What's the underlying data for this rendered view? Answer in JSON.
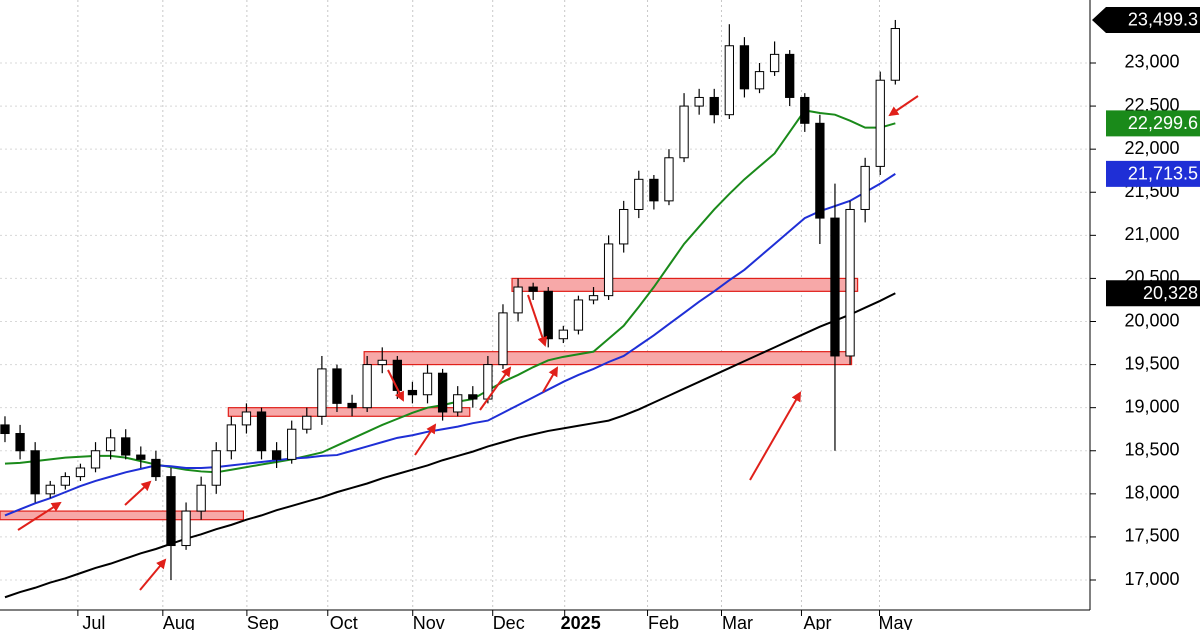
{
  "chart_data": {
    "type": "candlestick",
    "xlim": [
      -0.33,
      71.9
    ],
    "ylim": [
      16652,
      23731
    ],
    "grid": true,
    "xticks": [
      {
        "value": 4.83,
        "label": "Jul"
      },
      {
        "value": 10.46,
        "label": "Aug"
      },
      {
        "value": 16.03,
        "label": "Sep"
      },
      {
        "value": 21.39,
        "label": "Oct"
      },
      {
        "value": 27.02,
        "label": "Nov"
      },
      {
        "value": 32.32,
        "label": "Dec"
      },
      {
        "value": 37.09,
        "label": "2025"
      },
      {
        "value": 42.58,
        "label": "Feb"
      },
      {
        "value": 47.48,
        "label": "Mar"
      },
      {
        "value": 52.78,
        "label": "Apr"
      },
      {
        "value": 57.95,
        "label": "May"
      }
    ],
    "yticks": [
      {
        "value": 17000,
        "label": "17,000"
      },
      {
        "value": 17500,
        "label": "17,500"
      },
      {
        "value": 18000,
        "label": "18,000"
      },
      {
        "value": 18500,
        "label": "18,500"
      },
      {
        "value": 19000,
        "label": "19,000"
      },
      {
        "value": 19500,
        "label": "19,500"
      },
      {
        "value": 20000,
        "label": "20,000"
      },
      {
        "value": 20500,
        "label": "20,500"
      },
      {
        "value": 21000,
        "label": "21,000"
      },
      {
        "value": 21500,
        "label": "21,500"
      },
      {
        "value": 22000,
        "label": "22,000"
      },
      {
        "value": 22500,
        "label": "22,500"
      },
      {
        "value": 23000,
        "label": "23,000"
      }
    ],
    "candles": {
      "color": "#000000",
      "open": [
        18800,
        18700,
        18500,
        18000,
        18100,
        18200,
        18300,
        18500,
        18650,
        18450,
        18400,
        18200,
        17400,
        17800,
        18100,
        18500,
        18800,
        18950,
        18500,
        18400,
        18750,
        18900,
        19450,
        19050,
        19000,
        19500,
        19550,
        19200,
        19150,
        19400,
        18950,
        19150,
        19100,
        19500,
        20100,
        20400,
        20350,
        19800,
        19900,
        20250,
        20300,
        20900,
        21300,
        21650,
        21400,
        21900,
        22500,
        22600,
        22400,
        23200,
        22700,
        22900,
        23100,
        22600,
        22300,
        21200,
        19600,
        21300,
        21800,
        22800
      ],
      "high": [
        18900,
        18800,
        18600,
        18150,
        18250,
        18350,
        18600,
        18750,
        18750,
        18550,
        18500,
        18300,
        17900,
        18200,
        18600,
        18900,
        19050,
        19000,
        18600,
        18850,
        19000,
        19600,
        19500,
        19150,
        19600,
        19700,
        19600,
        19300,
        19500,
        19450,
        19250,
        19250,
        19600,
        20200,
        20500,
        20450,
        20400,
        19950,
        20300,
        20400,
        21000,
        21400,
        21750,
        21700,
        22000,
        22650,
        22700,
        22700,
        23450,
        23300,
        23000,
        23250,
        23150,
        22650,
        22400,
        21600,
        21400,
        21900,
        22900,
        23499.3
      ],
      "low": [
        18600,
        18400,
        17900,
        17950,
        18050,
        18150,
        18250,
        18400,
        18400,
        18300,
        18150,
        17000,
        17350,
        17700,
        18000,
        18400,
        18700,
        18400,
        18300,
        18350,
        18700,
        18800,
        18950,
        18900,
        18950,
        19400,
        19100,
        19050,
        19050,
        18850,
        18900,
        19000,
        19050,
        19450,
        20000,
        20250,
        19700,
        19750,
        19850,
        20200,
        20250,
        20800,
        21200,
        21300,
        21350,
        21850,
        22400,
        22300,
        22350,
        22600,
        22650,
        22850,
        22500,
        22200,
        20900,
        18500,
        19500,
        21150,
        21700,
        22750
      ],
      "close": [
        18700,
        18500,
        18000,
        18100,
        18200,
        18300,
        18500,
        18650,
        18450,
        18400,
        18200,
        17400,
        17800,
        18100,
        18500,
        18800,
        18950,
        18500,
        18400,
        18750,
        18900,
        19450,
        19050,
        19000,
        19500,
        19550,
        19200,
        19150,
        19400,
        18950,
        19150,
        19100,
        19500,
        20100,
        20400,
        20350,
        19800,
        19900,
        20250,
        20300,
        20900,
        21300,
        21650,
        21400,
        21900,
        22500,
        22600,
        22400,
        23200,
        22700,
        22900,
        23100,
        22600,
        22300,
        21200,
        19600,
        21300,
        21800,
        22800,
        23400
      ]
    },
    "series": [
      {
        "color": "#1a8a1a",
        "values": [
          18350,
          18360,
          18380,
          18400,
          18420,
          18430,
          18440,
          18440,
          18420,
          18380,
          18340,
          18310,
          18280,
          18260,
          18250,
          18280,
          18310,
          18340,
          18370,
          18400,
          18440,
          18480,
          18560,
          18640,
          18720,
          18800,
          18870,
          18940,
          19000,
          19030,
          19070,
          19100,
          19200,
          19300,
          19380,
          19470,
          19550,
          19590,
          19620,
          19650,
          19800,
          19950,
          20170,
          20400,
          20650,
          20900,
          21100,
          21300,
          21480,
          21650,
          21800,
          21950,
          22200,
          22450,
          22420,
          22400,
          22330,
          22250,
          22250,
          22299.6
        ]
      },
      {
        "color": "#1f2fd6",
        "values": [
          17750,
          17820,
          17890,
          17950,
          18020,
          18090,
          18150,
          18200,
          18250,
          18290,
          18330,
          18320,
          18300,
          18300,
          18310,
          18330,
          18350,
          18370,
          18390,
          18410,
          18420,
          18440,
          18450,
          18500,
          18550,
          18600,
          18650,
          18680,
          18720,
          18750,
          18780,
          18820,
          18850,
          18940,
          19030,
          19120,
          19210,
          19300,
          19380,
          19450,
          19530,
          19600,
          19720,
          19840,
          19970,
          20100,
          20230,
          20350,
          20480,
          20600,
          20750,
          20900,
          21050,
          21200,
          21280,
          21340,
          21400,
          21500,
          21600,
          21713.5
        ]
      },
      {
        "color": "#000000",
        "values": [
          16800,
          16860,
          16910,
          16970,
          17020,
          17080,
          17140,
          17190,
          17250,
          17310,
          17360,
          17420,
          17480,
          17530,
          17590,
          17640,
          17700,
          17750,
          17810,
          17860,
          17910,
          17960,
          18020,
          18070,
          18120,
          18180,
          18230,
          18280,
          18330,
          18390,
          18440,
          18490,
          18550,
          18600,
          18650,
          18690,
          18730,
          18760,
          18790,
          18820,
          18850,
          18910,
          18980,
          19060,
          19140,
          19220,
          19300,
          19380,
          19460,
          19540,
          19620,
          19700,
          19780,
          19860,
          19940,
          20010,
          20080,
          20160,
          20240,
          20328
        ]
      }
    ],
    "zones": [
      {
        "low": 17700,
        "high": 17800,
        "from": -0.33,
        "to": 15.8
      },
      {
        "low": 18900,
        "high": 19000,
        "from": 14.8,
        "to": 30.8
      },
      {
        "low": 19500,
        "high": 19650,
        "from": 23.8,
        "to": 56.1
      },
      {
        "low": 20350,
        "high": 20500,
        "from": 33.6,
        "to": 56.5
      }
    ],
    "price_labels": [
      {
        "value": 23499.3,
        "label": "23,499.3",
        "color": "#000000"
      },
      {
        "value": 22299.6,
        "label": "22,299.6",
        "color": "#1a8a1a"
      },
      {
        "value": 21713.5,
        "label": "21,713.5",
        "color": "#1f2fd6"
      },
      {
        "value": 20328,
        "label": "20,328",
        "color": "#000000"
      }
    ]
  }
}
